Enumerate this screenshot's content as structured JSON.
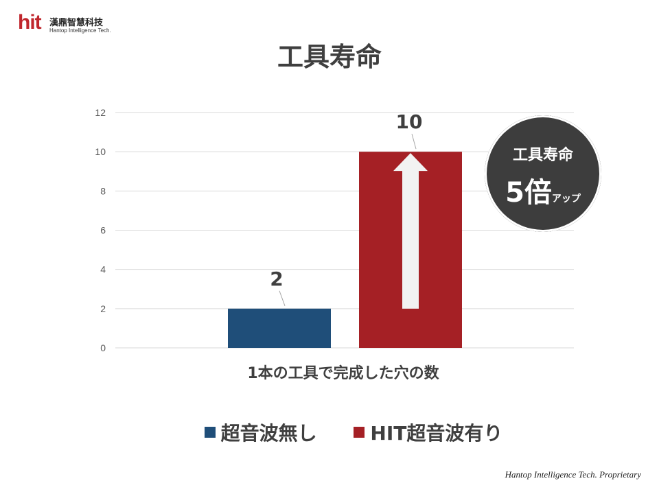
{
  "logo": {
    "mark": "hit",
    "name_cn": "漢鼎智慧科技",
    "name_en": "Hantop Intelligence Tech."
  },
  "badge": {
    "line1": "工具寿命",
    "multiplier": "5倍",
    "suffix": "アップ",
    "bg_color": "#3d3d3d"
  },
  "footer": "Hantop Intelligence Tech. Proprietary",
  "chart_data": {
    "type": "bar",
    "title": "工具寿命",
    "xlabel": "1本の工具で完成した穴の数",
    "ylabel": "",
    "ylim": [
      0,
      12
    ],
    "yticks": [
      0,
      2,
      4,
      6,
      8,
      10,
      12
    ],
    "grid": true,
    "legend_position": "bottom",
    "series": [
      {
        "name": "超音波無し",
        "value": 2,
        "label": "2",
        "color": "#1f4e79"
      },
      {
        "name": "HIT超音波有り",
        "value": 10,
        "label": "10",
        "color": "#a52025"
      }
    ],
    "annotation": {
      "type": "up-arrow",
      "from": 2,
      "to": 10,
      "series": 1,
      "color": "#f2f2f2"
    }
  }
}
